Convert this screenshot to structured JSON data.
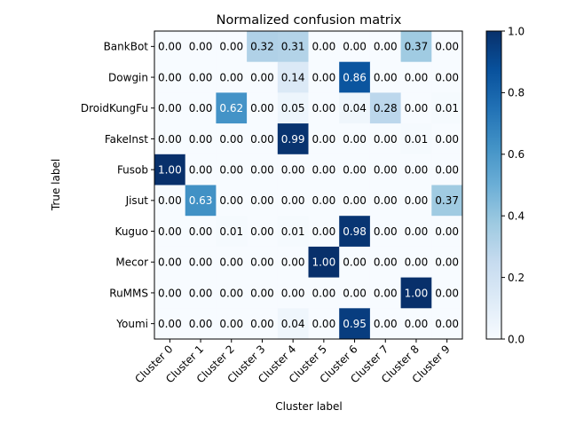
{
  "chart_data": {
    "type": "heatmap",
    "title": "Normalized confusion matrix",
    "xlabel": "Cluster label",
    "ylabel": "True label",
    "x_categories": [
      "Cluster 0",
      "Cluster 1",
      "Cluster 2",
      "Cluster 3",
      "Cluster 4",
      "Cluster 5",
      "Cluster 6",
      "Cluster 7",
      "Cluster 8",
      "Cluster 9"
    ],
    "y_categories": [
      "BankBot",
      "Dowgin",
      "DroidKungFu",
      "FakeInst",
      "Fusob",
      "Jisut",
      "Kuguo",
      "Mecor",
      "RuMMS",
      "Youmi"
    ],
    "values": [
      [
        0.0,
        0.0,
        0.0,
        0.32,
        0.31,
        0.0,
        0.0,
        0.0,
        0.37,
        0.0
      ],
      [
        0.0,
        0.0,
        0.0,
        0.0,
        0.14,
        0.0,
        0.86,
        0.0,
        0.0,
        0.0
      ],
      [
        0.0,
        0.0,
        0.62,
        0.0,
        0.05,
        0.0,
        0.04,
        0.28,
        0.0,
        0.01
      ],
      [
        0.0,
        0.0,
        0.0,
        0.0,
        0.99,
        0.0,
        0.0,
        0.0,
        0.01,
        0.0
      ],
      [
        1.0,
        0.0,
        0.0,
        0.0,
        0.0,
        0.0,
        0.0,
        0.0,
        0.0,
        0.0
      ],
      [
        0.0,
        0.63,
        0.0,
        0.0,
        0.0,
        0.0,
        0.0,
        0.0,
        0.0,
        0.37
      ],
      [
        0.0,
        0.0,
        0.01,
        0.0,
        0.01,
        0.0,
        0.98,
        0.0,
        0.0,
        0.0
      ],
      [
        0.0,
        0.0,
        0.0,
        0.0,
        0.0,
        1.0,
        0.0,
        0.0,
        0.0,
        0.0
      ],
      [
        0.0,
        0.0,
        0.0,
        0.0,
        0.0,
        0.0,
        0.0,
        0.0,
        1.0,
        0.0
      ],
      [
        0.0,
        0.0,
        0.0,
        0.0,
        0.04,
        0.0,
        0.95,
        0.0,
        0.0,
        0.0
      ]
    ],
    "value_format": "0.00",
    "colormap": "Blues",
    "vmin": 0.0,
    "vmax": 1.0,
    "colorbar_ticks": [
      "0.0",
      "0.2",
      "0.4",
      "0.6",
      "0.8",
      "1.0"
    ],
    "grid": false
  }
}
